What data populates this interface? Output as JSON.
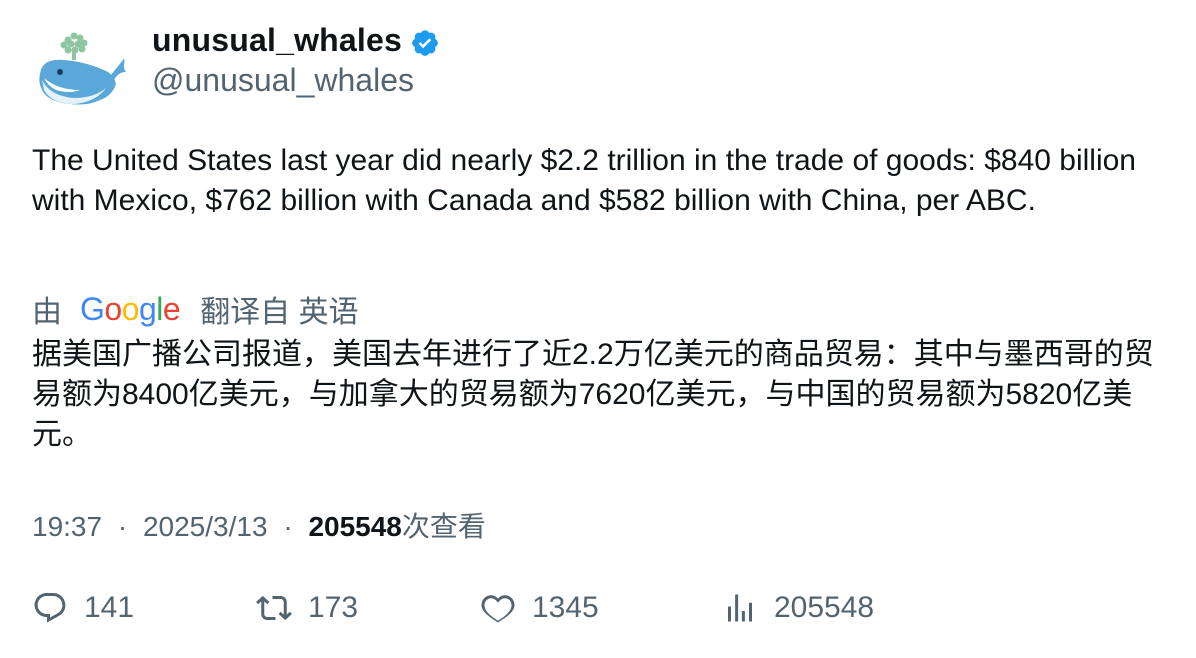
{
  "author": {
    "display_name": "unusual_whales",
    "handle": "@unusual_whales",
    "verified": true,
    "avatar_icon": "whale-logo"
  },
  "tweet": {
    "text": "The United States last year did nearly $2.2 trillion in the trade of goods: $840 billion with Mexico, $762 billion with Canada and $582 billion with China, per ABC."
  },
  "translation": {
    "by_label": "由",
    "provider_logo": "Google",
    "from_label": "翻译自 英语",
    "text": "据美国广播公司报道，美国去年进行了近2.2万亿美元的商品贸易：其中与墨西哥的贸易额为8400亿美元，与加拿大的贸易额为7620亿美元，与中国的贸易额为5820亿美元。"
  },
  "meta": {
    "time": "19:37",
    "separator": "·",
    "date": "2025/3/13",
    "views_count": "205548",
    "views_label": "次查看"
  },
  "actions": {
    "replies": "141",
    "retweets": "173",
    "likes": "1345",
    "views": "205548"
  },
  "colors": {
    "text_primary": "#0f1419",
    "text_secondary": "#536471",
    "verified_blue": "#1d9bf0"
  }
}
